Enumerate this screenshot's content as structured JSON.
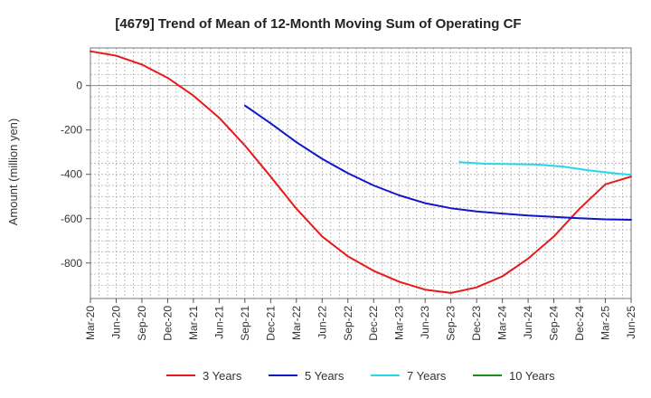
{
  "chart_data": {
    "type": "line",
    "title": "[4679]  Trend of Mean of 12-Month Moving Sum of Operating CF",
    "ylabel": "Amount (million yen)",
    "xlabel": "",
    "ylim": [
      -960,
      170
    ],
    "yticks": [
      0,
      -200,
      -400,
      -600,
      -800
    ],
    "x_tick_labels": [
      "Mar-20",
      "Jun-20",
      "Sep-20",
      "Dec-20",
      "Mar-21",
      "Jun-21",
      "Sep-21",
      "Dec-21",
      "Mar-22",
      "Jun-22",
      "Sep-22",
      "Dec-22",
      "Mar-23",
      "Jun-23",
      "Sep-23",
      "Dec-23",
      "Mar-24",
      "Jun-24",
      "Sep-24",
      "Dec-24",
      "Mar-25",
      "Jun-25"
    ],
    "x_unit": "months since Mar-20",
    "x_range": [
      0,
      63
    ],
    "grid": true,
    "legend_position": "bottom",
    "series": [
      {
        "name": "3 Years",
        "color": "#e8191b",
        "points": [
          [
            0,
            155
          ],
          [
            3,
            135
          ],
          [
            6,
            95
          ],
          [
            9,
            35
          ],
          [
            12,
            -45
          ],
          [
            15,
            -145
          ],
          [
            18,
            -270
          ],
          [
            21,
            -410
          ],
          [
            24,
            -555
          ],
          [
            27,
            -680
          ],
          [
            30,
            -770
          ],
          [
            33,
            -835
          ],
          [
            36,
            -885
          ],
          [
            39,
            -920
          ],
          [
            42,
            -935
          ],
          [
            45,
            -910
          ],
          [
            48,
            -860
          ],
          [
            51,
            -780
          ],
          [
            54,
            -680
          ],
          [
            57,
            -555
          ],
          [
            60,
            -445
          ],
          [
            63,
            -410
          ]
        ]
      },
      {
        "name": "5 Years",
        "color": "#1017c6",
        "points": [
          [
            18,
            -90
          ],
          [
            21,
            -170
          ],
          [
            24,
            -255
          ],
          [
            27,
            -330
          ],
          [
            30,
            -395
          ],
          [
            33,
            -450
          ],
          [
            36,
            -495
          ],
          [
            39,
            -530
          ],
          [
            42,
            -553
          ],
          [
            45,
            -567
          ],
          [
            48,
            -577
          ],
          [
            51,
            -586
          ],
          [
            54,
            -592
          ],
          [
            57,
            -598
          ],
          [
            60,
            -603
          ],
          [
            63,
            -605
          ]
        ]
      },
      {
        "name": "7 Years",
        "color": "#22d8ea",
        "points": [
          [
            43,
            -345
          ],
          [
            46,
            -352
          ],
          [
            49,
            -354
          ],
          [
            52,
            -356
          ],
          [
            55,
            -365
          ],
          [
            58,
            -382
          ],
          [
            61,
            -395
          ],
          [
            63,
            -402
          ]
        ]
      },
      {
        "name": "10 Years",
        "color": "#1a8c1a",
        "points": []
      }
    ]
  }
}
